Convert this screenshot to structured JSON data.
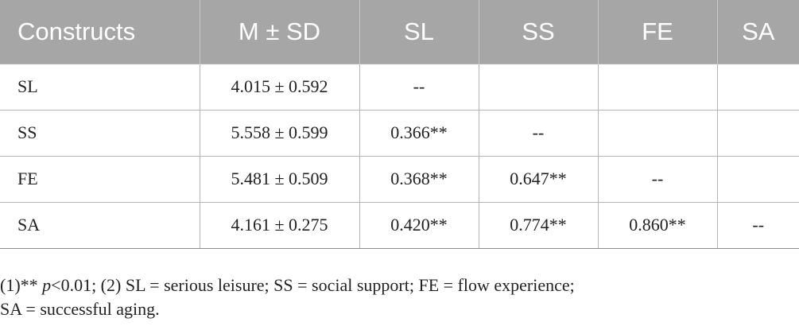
{
  "table": {
    "headers": [
      "Constructs",
      "M ± SD",
      "SL",
      "SS",
      "FE",
      "SA"
    ],
    "rows": [
      [
        "SL",
        "4.015 ± 0.592",
        "--",
        "",
        "",
        ""
      ],
      [
        "SS",
        "5.558 ± 0.599",
        "0.366**",
        "--",
        "",
        ""
      ],
      [
        "FE",
        "5.481 ± 0.509",
        "0.368**",
        "0.647**",
        "--",
        ""
      ],
      [
        "SA",
        "4.161 ± 0.275",
        "0.420**",
        "0.774**",
        "0.860**",
        "--"
      ]
    ]
  },
  "footnote": {
    "prefix": "(1)** ",
    "p_symbol": "p",
    "line1_rest": "<0.01; (2) SL = serious leisure; SS = social support; FE = flow experience;",
    "line2": "SA = successful aging."
  },
  "colors": {
    "header_background": "#a6a6a6",
    "header_text": "#ffffff",
    "grid": "#b5b5b5"
  }
}
